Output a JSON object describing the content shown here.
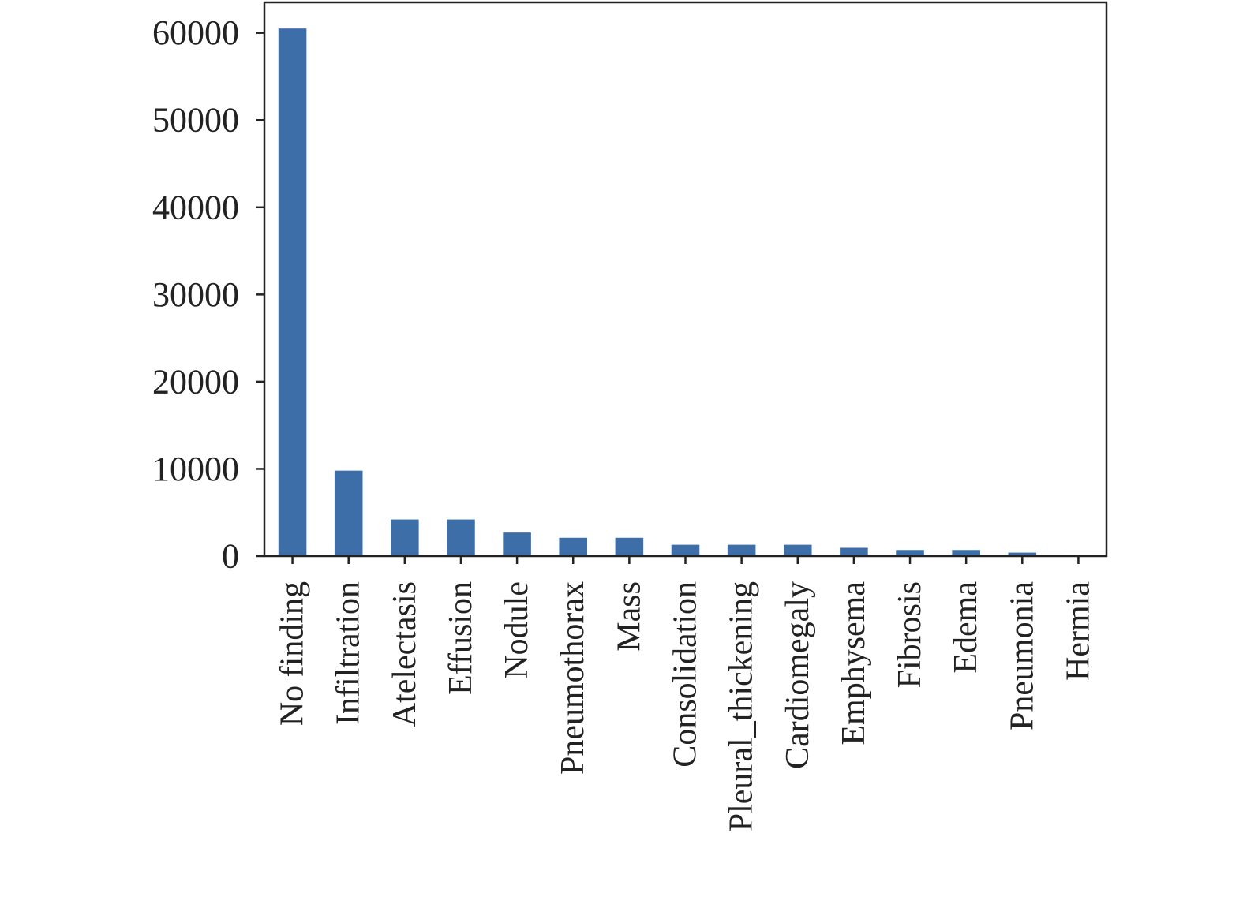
{
  "chart_data": {
    "type": "bar",
    "title": "",
    "xlabel": "",
    "ylabel": "",
    "categories": [
      "No finding",
      "Infiltration",
      "Atelectasis",
      "Effusion",
      "Nodule",
      "Pneumothorax",
      "Mass",
      "Consolidation",
      "Pleural_thickening",
      "Cardiomegaly",
      "Emphysema",
      "Fibrosis",
      "Edema",
      "Pneumonia",
      "Hermia"
    ],
    "values": [
      60500,
      9800,
      4200,
      4200,
      2700,
      2100,
      2100,
      1300,
      1300,
      1300,
      950,
      700,
      700,
      400,
      100
    ],
    "yticks": [
      0,
      10000,
      20000,
      30000,
      40000,
      50000,
      60000
    ],
    "ytick_labels": [
      "0",
      "10000",
      "20000",
      "30000",
      "40000",
      "50000",
      "60000"
    ],
    "ylim": [
      0,
      63500
    ],
    "grid": false,
    "legend": "none",
    "bar_color": "#3e6ea8",
    "axis_color": "#222222"
  }
}
